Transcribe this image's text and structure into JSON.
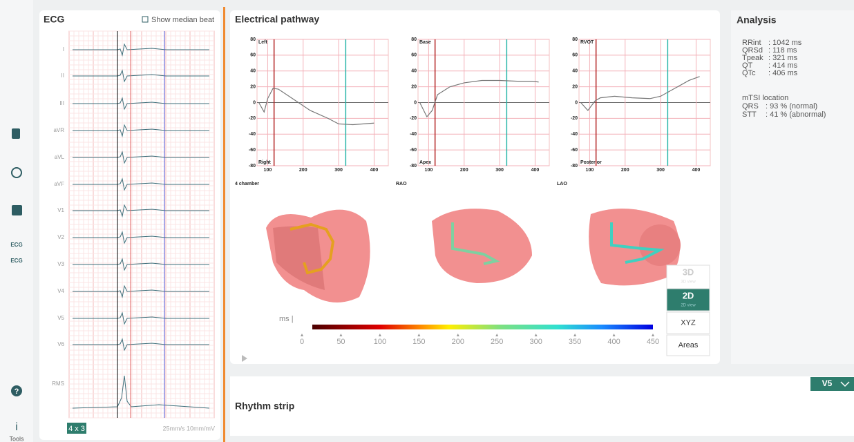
{
  "sidebar": {
    "ecg_top": "ECG",
    "ecg_bottom": "ECG",
    "help": "?",
    "info": "i",
    "tools": "Tools"
  },
  "ecg_panel": {
    "title": "ECG",
    "toggle": "Show median beat",
    "leads": [
      "I",
      "II",
      "III",
      "aVR",
      "aVL",
      "aVF",
      "V1",
      "V2",
      "V3",
      "V4",
      "V5",
      "V6",
      "RMS"
    ],
    "layout": "4 x 3",
    "scale": "25mm/s 10mm/mV"
  },
  "pathway_panel": {
    "title": "Electrical pathway"
  },
  "chart_data": [
    {
      "type": "line",
      "view": "4 chamber",
      "top_label": "Left",
      "bottom_label": "Right",
      "xlim": [
        70,
        440
      ],
      "xticks": [
        100,
        200,
        300,
        400
      ],
      "ylim": [
        -80,
        80
      ],
      "yticks": [
        -80,
        -60,
        -40,
        -20,
        0,
        20,
        40,
        60,
        80
      ],
      "grid": true,
      "x": [
        75,
        90,
        100,
        115,
        130,
        170,
        220,
        270,
        300,
        340,
        400
      ],
      "series": [
        {
          "color": "#777777",
          "values": [
            0,
            -12,
            5,
            18,
            17,
            5,
            -10,
            -20,
            -27,
            -28,
            -26
          ]
        }
      ],
      "markers": [
        {
          "x": 118,
          "color": "#b22222"
        },
        {
          "x": 320,
          "color": "#26b5a8"
        }
      ]
    },
    {
      "type": "line",
      "view": "RAO",
      "top_label": "Base",
      "bottom_label": "Apex",
      "xlim": [
        70,
        440
      ],
      "xticks": [
        100,
        200,
        300,
        400
      ],
      "ylim": [
        -80,
        80
      ],
      "yticks": [
        -80,
        -60,
        -40,
        -20,
        0,
        20,
        40,
        60,
        80
      ],
      "grid": true,
      "x": [
        75,
        95,
        110,
        125,
        160,
        200,
        250,
        300,
        350,
        390,
        410
      ],
      "series": [
        {
          "color": "#777777",
          "values": [
            0,
            -18,
            -10,
            10,
            20,
            25,
            28,
            28,
            27,
            27,
            26
          ]
        }
      ],
      "markers": [
        {
          "x": 118,
          "color": "#b22222"
        },
        {
          "x": 320,
          "color": "#26b5a8"
        }
      ]
    },
    {
      "type": "line",
      "view": "LAO",
      "top_label": "RVOT",
      "bottom_label": "Posterior",
      "xlim": [
        70,
        440
      ],
      "xticks": [
        100,
        200,
        300,
        400
      ],
      "ylim": [
        -80,
        80
      ],
      "yticks": [
        -80,
        -60,
        -40,
        -20,
        0,
        20,
        40,
        60,
        80
      ],
      "grid": true,
      "x": [
        75,
        95,
        115,
        130,
        170,
        220,
        270,
        300,
        340,
        380,
        410
      ],
      "series": [
        {
          "color": "#777777",
          "values": [
            0,
            -10,
            2,
            6,
            8,
            6,
            5,
            8,
            18,
            28,
            33
          ]
        }
      ],
      "markers": [
        {
          "x": 118,
          "color": "#b22222"
        },
        {
          "x": 320,
          "color": "#26b5a8"
        }
      ]
    }
  ],
  "colorbar": {
    "label": "ms |",
    "lim": [
      0,
      450
    ],
    "ticks": [
      0,
      50,
      100,
      150,
      200,
      250,
      300,
      350,
      400,
      450
    ]
  },
  "views": [
    {
      "label": "3D",
      "sub": "3D view"
    },
    {
      "label": "2D",
      "sub": "2D view"
    },
    {
      "label": "XYZ"
    },
    {
      "label": "Areas"
    }
  ],
  "analysis": {
    "title": "Analysis",
    "measurements": [
      [
        "RRint",
        ": 1042 ms"
      ],
      [
        "QRSd",
        ": 118 ms"
      ],
      [
        "Tpeak",
        ": 321 ms"
      ],
      [
        "QT",
        ": 414 ms"
      ],
      [
        "QTc",
        ": 406 ms"
      ]
    ],
    "mtsi_title": "mTSI location",
    "mtsi": [
      [
        "QRS",
        ": 93 % (normal)"
      ],
      [
        "STT",
        ": 41 % (abnormal)"
      ]
    ]
  },
  "rhythm": {
    "title": "Rhythm strip",
    "lead": "V5"
  }
}
